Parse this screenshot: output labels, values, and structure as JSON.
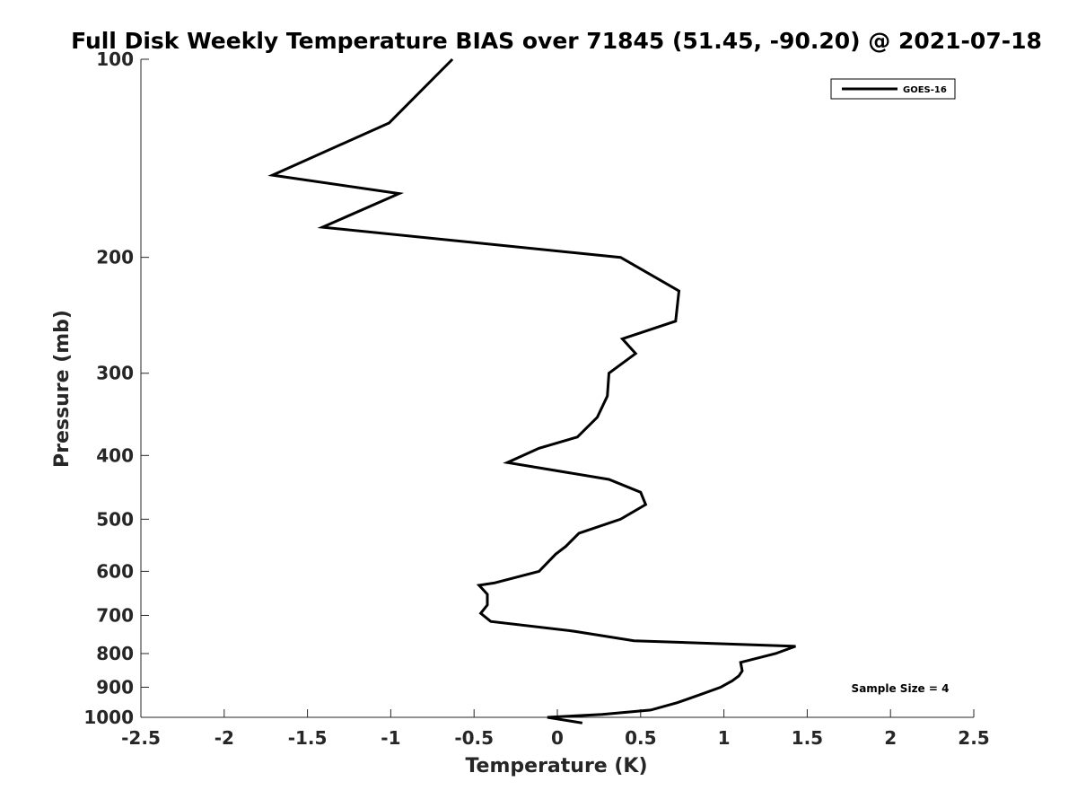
{
  "chart_data": {
    "type": "line",
    "title": "Full Disk Weekly Temperature BIAS over 71845 (51.45, -90.20) @ 2021-07-18",
    "xlabel": "Temperature (K)",
    "ylabel": "Pressure (mb)",
    "xlim": [
      -2.5,
      2.5
    ],
    "ylim": [
      100,
      1000
    ],
    "y_scale": "log",
    "y_direction": "reversed",
    "x_ticks": [
      -2.5,
      -2,
      -1.5,
      -1,
      -0.5,
      0,
      0.5,
      1,
      1.5,
      2,
      2.5
    ],
    "x_tick_labels": [
      "-2.5",
      "-2",
      "-1.5",
      "-1",
      "-0.5",
      "0",
      "0.5",
      "1",
      "1.5",
      "2",
      "2.5"
    ],
    "y_ticks": [
      100,
      200,
      300,
      400,
      500,
      600,
      700,
      800,
      900,
      1000
    ],
    "y_tick_labels": [
      "100",
      "200",
      "300",
      "400",
      "500",
      "600",
      "700",
      "800",
      "900",
      "1000"
    ],
    "grid": false,
    "legend_position": "top-right",
    "annotation": "Sample Size = 4",
    "series": [
      {
        "name": "GOES-16",
        "color": "#000000",
        "x": [
          -0.63,
          -1.01,
          -1.71,
          -0.95,
          -1.41,
          0.38,
          0.73,
          0.71,
          0.39,
          0.47,
          0.31,
          0.3,
          0.24,
          0.12,
          -0.11,
          -0.3,
          0.31,
          0.5,
          0.53,
          0.38,
          0.13,
          0.05,
          -0.01,
          -0.11,
          -0.38,
          -0.47,
          -0.42,
          -0.42,
          -0.46,
          -0.4,
          0.1,
          0.46,
          1.43,
          1.31,
          1.1,
          1.11,
          1.09,
          1.05,
          0.98,
          0.85,
          0.72,
          0.56,
          0.27,
          -0.06,
          0.15
        ],
        "y": [
          100,
          125,
          150,
          160,
          180,
          200,
          225,
          250,
          266,
          280,
          300,
          325,
          350,
          375,
          390,
          410,
          435,
          455,
          475,
          500,
          525,
          550,
          565,
          600,
          625,
          630,
          650,
          675,
          695,
          715,
          740,
          765,
          780,
          800,
          825,
          850,
          865,
          880,
          900,
          925,
          950,
          975,
          990,
          1000,
          1020
        ]
      }
    ]
  }
}
